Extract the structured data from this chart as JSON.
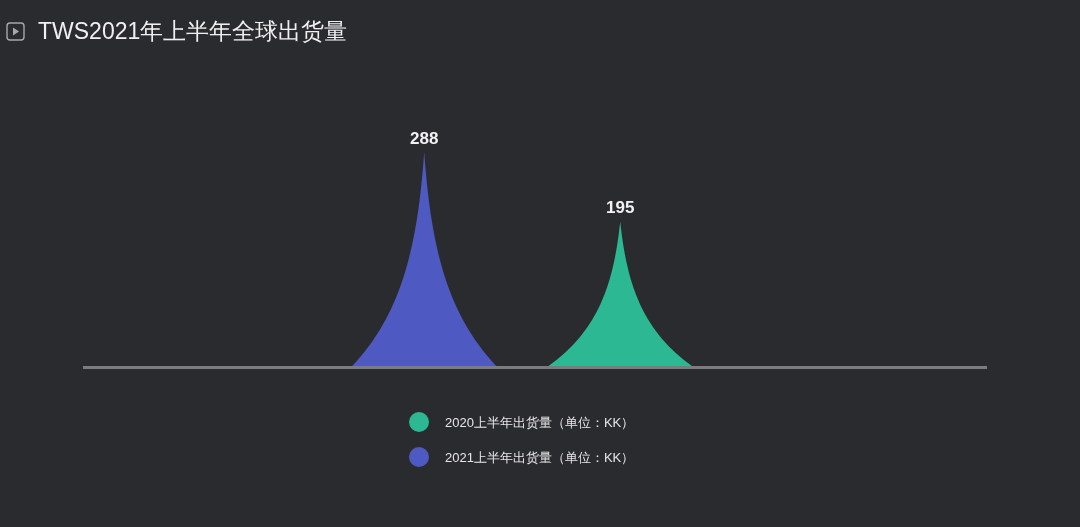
{
  "chart_data": {
    "type": "bar",
    "title": "TWS2021年上半年全球出货量",
    "categories": [
      null
    ],
    "series": [
      {
        "name": "2021上半年出货量（单位：KK）",
        "color": "#4e5ac2",
        "values": [
          288
        ]
      },
      {
        "name": "2020上半年出货量（单位：KK）",
        "color": "#2bb892",
        "values": [
          195
        ]
      }
    ],
    "data_labels": true,
    "legend": "bottom"
  }
}
